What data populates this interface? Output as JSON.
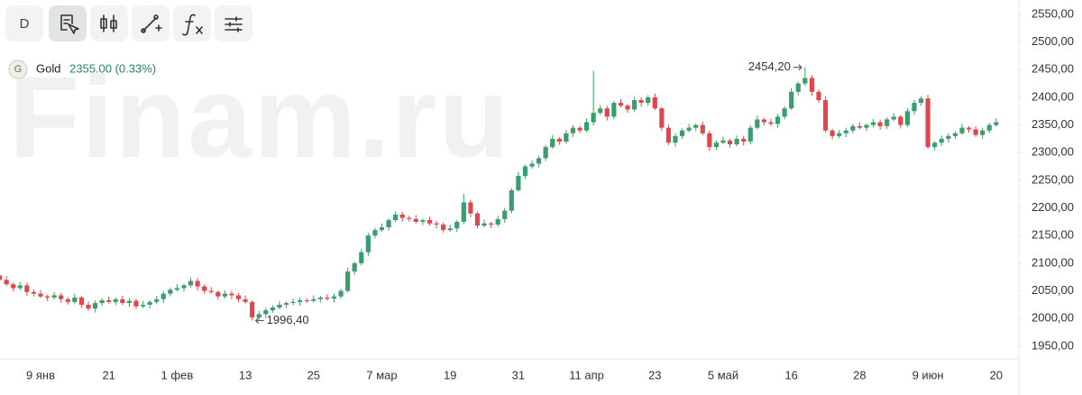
{
  "toolbar": {
    "interval": "D"
  },
  "chart_data": {
    "type": "candlestick",
    "watermark": "Finam.ru",
    "legend": {
      "badge": "G",
      "name": "Gold",
      "quote": "2355.00 (0.33%)"
    },
    "up_color": "#3a9d6d",
    "down_color": "#e0474c",
    "high_label": "2454,20",
    "low_label": "1996,40",
    "ylim": [
      1927,
      2576
    ],
    "yticks": [
      {
        "value": 1950,
        "label": "1950,00"
      },
      {
        "value": 2000,
        "label": "2000,00"
      },
      {
        "value": 2050,
        "label": "2050,00"
      },
      {
        "value": 2100,
        "label": "2100,00"
      },
      {
        "value": 2150,
        "label": "2150,00"
      },
      {
        "value": 2200,
        "label": "2200,00"
      },
      {
        "value": 2250,
        "label": "2250,00"
      },
      {
        "value": 2300,
        "label": "2300,00"
      },
      {
        "value": 2350,
        "label": "2350,00"
      },
      {
        "value": 2400,
        "label": "2400,00"
      },
      {
        "value": 2450,
        "label": "2450,00"
      },
      {
        "value": 2500,
        "label": "2500,00"
      },
      {
        "value": 2550,
        "label": "2550,00"
      }
    ],
    "categories": [
      null,
      null,
      null,
      null,
      null,
      null,
      "9 янв",
      null,
      null,
      null,
      null,
      null,
      null,
      null,
      null,
      null,
      "21",
      null,
      null,
      null,
      null,
      null,
      null,
      null,
      null,
      null,
      "1 фев",
      null,
      null,
      null,
      null,
      null,
      null,
      null,
      null,
      null,
      "13",
      null,
      null,
      null,
      null,
      null,
      null,
      null,
      null,
      null,
      "25",
      null,
      null,
      null,
      null,
      null,
      null,
      null,
      null,
      null,
      "7 мар",
      null,
      null,
      null,
      null,
      null,
      null,
      null,
      null,
      null,
      "19",
      null,
      null,
      null,
      null,
      null,
      null,
      null,
      null,
      null,
      "31",
      null,
      null,
      null,
      null,
      null,
      null,
      null,
      null,
      null,
      "11 апр",
      null,
      null,
      null,
      null,
      null,
      null,
      null,
      null,
      null,
      "23",
      null,
      null,
      null,
      null,
      null,
      null,
      null,
      null,
      null,
      "5 май",
      null,
      null,
      null,
      null,
      null,
      null,
      null,
      null,
      null,
      "16",
      null,
      null,
      null,
      null,
      null,
      null,
      null,
      null,
      null,
      "28",
      null,
      null,
      null,
      null,
      null,
      null,
      null,
      null,
      null,
      "9 июн",
      null,
      null,
      null,
      null,
      null,
      null,
      null,
      null,
      null,
      "20"
    ],
    "open": [
      2078,
      2070,
      2062,
      2055,
      2060,
      2048,
      2045,
      2040,
      2038,
      2042,
      2035,
      2030,
      2038,
      2025,
      2018,
      2028,
      2033,
      2030,
      2035,
      2028,
      2032,
      2022,
      2025,
      2030,
      2035,
      2045,
      2052,
      2055,
      2060,
      2068,
      2058,
      2050,
      2048,
      2040,
      2045,
      2042,
      2035,
      2030,
      2002,
      2008,
      2015,
      2020,
      2025,
      2028,
      2030,
      2033,
      2032,
      2035,
      2038,
      2036,
      2040,
      2050,
      2085,
      2100,
      2120,
      2150,
      2160,
      2165,
      2178,
      2188,
      2182,
      2180,
      2175,
      2178,
      2172,
      2170,
      2160,
      2163,
      2175,
      2210,
      2190,
      2168,
      2172,
      2170,
      2180,
      2195,
      2232,
      2258,
      2275,
      2280,
      2290,
      2310,
      2325,
      2320,
      2335,
      2345,
      2340,
      2355,
      2372,
      2380,
      2365,
      2390,
      2385,
      2378,
      2395,
      2390,
      2400,
      2380,
      2345,
      2318,
      2330,
      2340,
      2345,
      2350,
      2335,
      2310,
      2318,
      2322,
      2315,
      2325,
      2320,
      2345,
      2360,
      2355,
      2352,
      2365,
      2380,
      2410,
      2425,
      2435,
      2410,
      2395,
      2340,
      2330,
      2335,
      2340,
      2348,
      2345,
      2350,
      2355,
      2348,
      2360,
      2365,
      2350,
      2375,
      2390,
      2398,
      2310,
      2318,
      2325,
      2330,
      2335,
      2345,
      2342,
      2332,
      2340,
      2350
    ],
    "high": [
      2082,
      2077,
      2065,
      2066,
      2065,
      2052,
      2052,
      2043,
      2048,
      2047,
      2039,
      2045,
      2041,
      2031,
      2033,
      2037,
      2040,
      2038,
      2041,
      2037,
      2036,
      2032,
      2033,
      2041,
      2050,
      2056,
      2062,
      2063,
      2074,
      2073,
      2062,
      2057,
      2051,
      2051,
      2050,
      2046,
      2042,
      2033,
      2014,
      2020,
      2024,
      2032,
      2031,
      2036,
      2038,
      2037,
      2042,
      2041,
      2044,
      2045,
      2054,
      2092,
      2103,
      2126,
      2155,
      2164,
      2172,
      2181,
      2194,
      2193,
      2186,
      2187,
      2181,
      2184,
      2177,
      2174,
      2170,
      2178,
      2225,
      2215,
      2194,
      2179,
      2175,
      2186,
      2200,
      2236,
      2265,
      2278,
      2286,
      2295,
      2314,
      2332,
      2328,
      2341,
      2350,
      2349,
      2362,
      2448,
      2386,
      2385,
      2394,
      2397,
      2388,
      2401,
      2400,
      2404,
      2407,
      2383,
      2351,
      2335,
      2344,
      2352,
      2353,
      2356,
      2340,
      2322,
      2329,
      2325,
      2331,
      2330,
      2349,
      2367,
      2363,
      2361,
      2370,
      2384,
      2417,
      2428,
      2454.2,
      2440,
      2414,
      2402,
      2343,
      2341,
      2345,
      2352,
      2355,
      2353,
      2361,
      2360,
      2364,
      2372,
      2368,
      2381,
      2395,
      2402,
      2405,
      2321,
      2331,
      2335,
      2339,
      2352,
      2348,
      2348,
      2345,
      2354,
      2362
    ],
    "low": [
      2065,
      2059,
      2049,
      2051,
      2041,
      2040,
      2037,
      2032,
      2034,
      2028,
      2025,
      2027,
      2019,
      2014,
      2011,
      2023,
      2027,
      2024,
      2024,
      2021,
      2017,
      2019,
      2019,
      2026,
      2028,
      2040,
      2049,
      2049,
      2056,
      2051,
      2045,
      2045,
      2034,
      2036,
      2035,
      2030,
      2027,
      1996.4,
      1998,
      2001,
      2010,
      2017,
      2019,
      2024,
      2023,
      2028,
      2029,
      2029,
      2032,
      2029,
      2035,
      2047,
      2079,
      2096,
      2113,
      2145,
      2157,
      2159,
      2174,
      2175,
      2175,
      2172,
      2169,
      2168,
      2163,
      2155,
      2157,
      2157,
      2171,
      2183,
      2163,
      2165,
      2164,
      2166,
      2173,
      2190,
      2229,
      2252,
      2271,
      2273,
      2285,
      2307,
      2314,
      2316,
      2328,
      2335,
      2337,
      2349,
      2368,
      2358,
      2360,
      2382,
      2372,
      2374,
      2383,
      2385,
      2377,
      2339,
      2314,
      2311,
      2325,
      2337,
      2339,
      2331,
      2303,
      2305,
      2315,
      2309,
      2311,
      2313,
      2315,
      2342,
      2349,
      2348,
      2345,
      2360,
      2377,
      2404,
      2421,
      2403,
      2390,
      2337,
      2324,
      2326,
      2328,
      2335,
      2342,
      2339,
      2346,
      2341,
      2343,
      2357,
      2344,
      2346,
      2368,
      2385,
      2307,
      2304,
      2312,
      2318,
      2325,
      2332,
      2336,
      2328,
      2325,
      2335,
      2347
    ],
    "close": [
      2070,
      2062,
      2055,
      2060,
      2048,
      2045,
      2040,
      2038,
      2042,
      2035,
      2030,
      2038,
      2025,
      2018,
      2028,
      2033,
      2030,
      2035,
      2028,
      2032,
      2022,
      2025,
      2030,
      2035,
      2045,
      2052,
      2055,
      2060,
      2068,
      2058,
      2050,
      2048,
      2040,
      2045,
      2042,
      2035,
      2030,
      2002,
      2008,
      2015,
      2020,
      2025,
      2028,
      2030,
      2033,
      2032,
      2035,
      2038,
      2036,
      2040,
      2050,
      2085,
      2100,
      2120,
      2150,
      2160,
      2165,
      2178,
      2188,
      2182,
      2180,
      2175,
      2178,
      2172,
      2170,
      2160,
      2163,
      2175,
      2210,
      2190,
      2168,
      2172,
      2170,
      2180,
      2195,
      2232,
      2258,
      2275,
      2280,
      2290,
      2310,
      2325,
      2320,
      2335,
      2345,
      2340,
      2355,
      2372,
      2380,
      2365,
      2390,
      2385,
      2378,
      2395,
      2390,
      2400,
      2380,
      2345,
      2318,
      2330,
      2340,
      2345,
      2350,
      2335,
      2310,
      2318,
      2322,
      2315,
      2325,
      2320,
      2345,
      2360,
      2355,
      2352,
      2365,
      2380,
      2410,
      2425,
      2435,
      2410,
      2395,
      2340,
      2330,
      2335,
      2340,
      2348,
      2345,
      2350,
      2355,
      2348,
      2360,
      2365,
      2350,
      2375,
      2390,
      2398,
      2310,
      2318,
      2325,
      2330,
      2335,
      2345,
      2342,
      2332,
      2340,
      2350,
      2355
    ]
  }
}
